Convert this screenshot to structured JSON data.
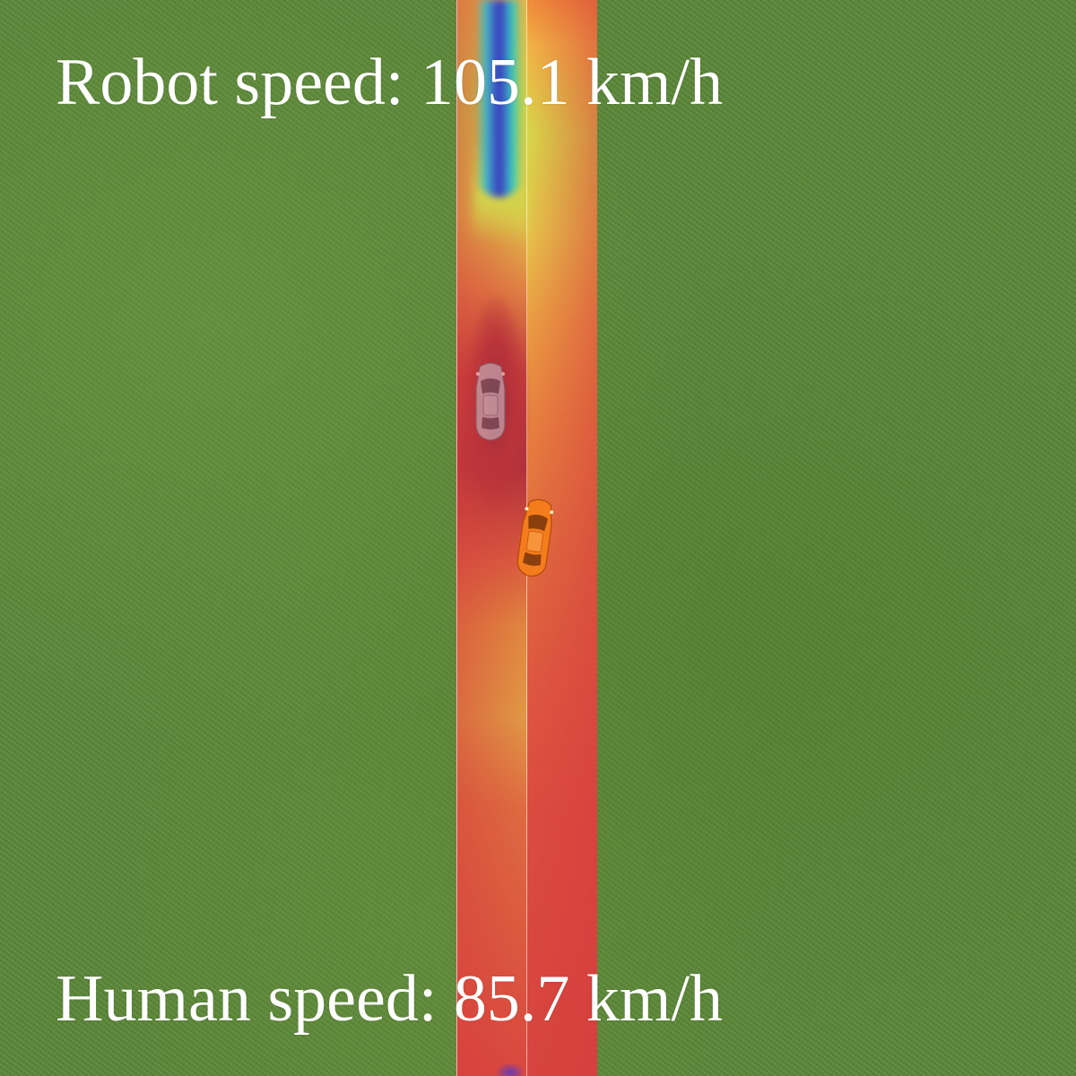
{
  "hud": {
    "robot_speed_text": "Robot speed: 105.1 km/h",
    "human_speed_text": "Human speed: 85.7 km/h"
  },
  "scene": {
    "background": "grass",
    "road": "single vertical road with cost heat map overlay",
    "cars": [
      {
        "role": "human",
        "color": "#b9b9c4",
        "transparency": "semi-transparent"
      },
      {
        "role": "robot",
        "color": "#f47c1c",
        "transparency": "opaque"
      }
    ],
    "colors": {
      "grass": "#5e8b3b",
      "heat_hot": "#b0303a",
      "heat_mid": "#e0883f",
      "heat_cool": "#d2d54c",
      "heat_cold": "#2a2ab8",
      "text": "#ffffff"
    }
  }
}
